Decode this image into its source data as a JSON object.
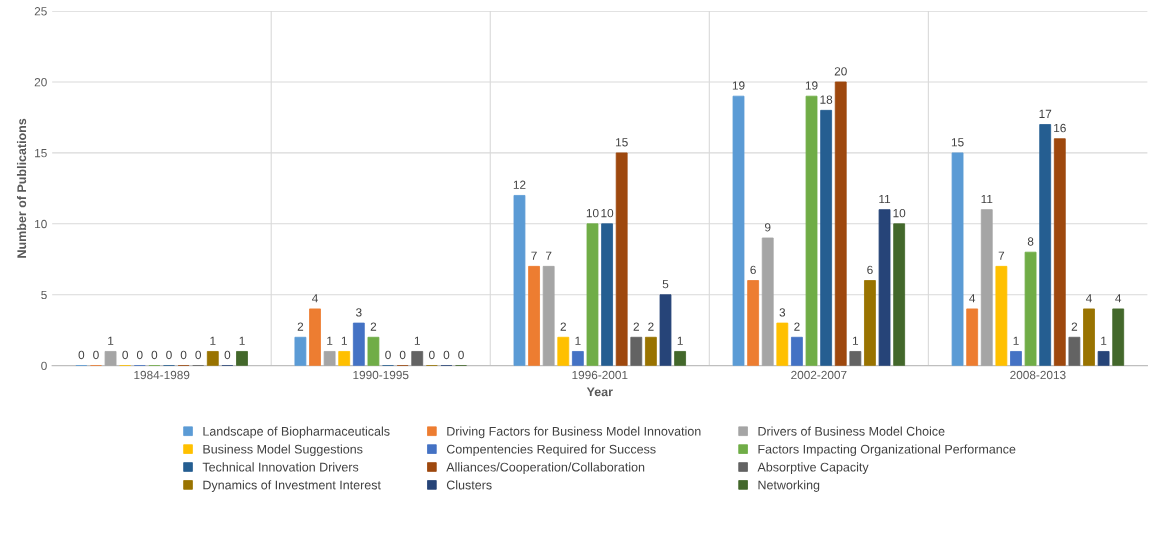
{
  "chart_data": {
    "type": "bar",
    "xlabel": "Year",
    "ylabel": "Number of Publications",
    "categories": [
      "1984-1989",
      "1990-1995",
      "1996-2001",
      "2002-2007",
      "2008-2013"
    ],
    "series": [
      {
        "name": "Landscape of Biopharmaceuticals",
        "color": "#5b9bd5",
        "values": [
          0,
          2,
          12,
          19,
          15
        ]
      },
      {
        "name": "Driving Factors for Business Model Innovation",
        "color": "#ed7d31",
        "values": [
          0,
          4,
          7,
          6,
          4
        ]
      },
      {
        "name": "Drivers of Business Model Choice",
        "color": "#a5a5a5",
        "values": [
          1,
          1,
          7,
          9,
          11
        ]
      },
      {
        "name": "Business Model Suggestions",
        "color": "#ffc000",
        "values": [
          0,
          1,
          2,
          3,
          7
        ]
      },
      {
        "name": "Compentencies Required for Success",
        "color": "#4472c4",
        "values": [
          0,
          3,
          1,
          2,
          1
        ]
      },
      {
        "name": "Factors Impacting Organizational Performance",
        "color": "#70ad47",
        "values": [
          0,
          2,
          10,
          19,
          8
        ]
      },
      {
        "name": "Technical Innovation Drivers",
        "color": "#255e91",
        "values": [
          0,
          0,
          10,
          18,
          17
        ]
      },
      {
        "name": "Alliances/Cooperation/Collaboration",
        "color": "#9e480e",
        "values": [
          0,
          0,
          15,
          20,
          16
        ]
      },
      {
        "name": "Absorptive Capacity",
        "color": "#636363",
        "values": [
          0,
          1,
          2,
          1,
          2
        ]
      },
      {
        "name": "Dynamics of Investment Interest",
        "color": "#997300",
        "values": [
          1,
          0,
          2,
          6,
          4
        ]
      },
      {
        "name": "Clusters",
        "color": "#264478",
        "values": [
          0,
          0,
          5,
          11,
          1
        ]
      },
      {
        "name": "Networking",
        "color": "#43682b",
        "values": [
          1,
          0,
          1,
          10,
          4
        ]
      }
    ],
    "ylim": [
      0,
      25
    ],
    "yticks": [
      0,
      5,
      10,
      15,
      20,
      25
    ],
    "grid": true,
    "legend": "bottom",
    "data_labels": true
  }
}
